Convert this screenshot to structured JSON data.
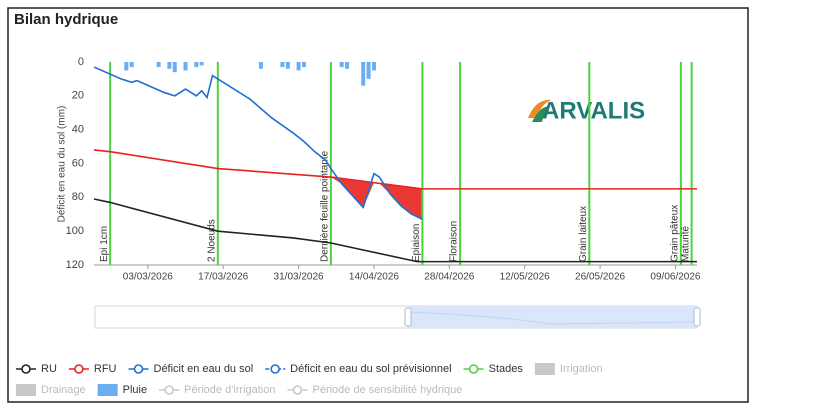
{
  "chart_data": {
    "type": "line",
    "title": "Bilan hydrique",
    "ylabel": "Déficit en eau du sol (mm)",
    "logo": "ARVALIS",
    "ylim": [
      0,
      120
    ],
    "y_inverted": true,
    "yticks": [
      0,
      20,
      40,
      60,
      80,
      100,
      120
    ],
    "xlim": [
      "2026-02-21",
      "2026-06-13"
    ],
    "xticks": [
      {
        "value": "2026-03-03",
        "label": "03/03/2026"
      },
      {
        "value": "2026-03-17",
        "label": "17/03/2026"
      },
      {
        "value": "2026-03-31",
        "label": "31/03/2026"
      },
      {
        "value": "2026-04-14",
        "label": "14/04/2026"
      },
      {
        "value": "2026-04-28",
        "label": "28/04/2026"
      },
      {
        "value": "2026-05-12",
        "label": "12/05/2026"
      },
      {
        "value": "2026-05-26",
        "label": "26/05/2026"
      },
      {
        "value": "2026-06-09",
        "label": "09/06/2026"
      }
    ],
    "series": [
      {
        "name": "RU",
        "kind": "line",
        "color": "#222222",
        "x": [
          "2026-02-21",
          "2026-02-24",
          "2026-03-16",
          "2026-03-30",
          "2026-04-06",
          "2026-04-22",
          "2026-06-13"
        ],
        "values": [
          81,
          83,
          100,
          104,
          107,
          118,
          118
        ]
      },
      {
        "name": "RFU",
        "kind": "line",
        "color": "#e8231f",
        "x": [
          "2026-02-21",
          "2026-02-24",
          "2026-03-16",
          "2026-04-06",
          "2026-04-23",
          "2026-06-13"
        ],
        "values": [
          52,
          53,
          63,
          68,
          75,
          75
        ]
      },
      {
        "name": "Déficit en eau du sol",
        "kind": "line",
        "color": "#1f6fd1",
        "x": [
          "2026-02-21",
          "2026-02-26",
          "2026-02-28",
          "2026-03-01",
          "2026-03-06",
          "2026-03-08",
          "2026-03-10",
          "2026-03-12",
          "2026-03-13",
          "2026-03-14",
          "2026-03-15",
          "2026-03-16",
          "2026-03-18",
          "2026-03-22",
          "2026-03-26",
          "2026-03-30",
          "2026-04-01",
          "2026-04-03",
          "2026-04-05",
          "2026-04-06"
        ],
        "values": [
          3,
          10,
          12,
          11,
          18,
          20,
          16,
          20,
          17,
          21,
          8,
          10,
          14,
          22,
          33,
          42,
          47,
          53,
          58,
          63
        ]
      },
      {
        "name": "Déficit en eau du sol prévisionnel",
        "kind": "line",
        "color": "#1f6fd1",
        "dashed": true,
        "area_color": "#e8231f",
        "x": [
          "2026-04-06",
          "2026-04-08",
          "2026-04-12",
          "2026-04-14",
          "2026-04-15",
          "2026-04-17",
          "2026-04-19",
          "2026-04-21",
          "2026-04-23"
        ],
        "values": [
          63,
          72,
          86,
          66,
          68,
          78,
          85,
          90,
          93
        ]
      },
      {
        "name": "Stades",
        "kind": "stade",
        "color": "#4cd13f",
        "x": [
          "2026-02-24",
          "2026-03-16",
          "2026-04-06",
          "2026-04-23",
          "2026-04-30",
          "2026-05-24",
          "2026-06-10",
          "2026-06-12"
        ],
        "labels": [
          "Epi 1cm",
          "2 Noeuds",
          "Dernière feuille pointante",
          "Epiaison",
          "Floraison",
          "Grain laiteux",
          "Grain pâteux",
          "Maturité"
        ]
      },
      {
        "name": "Irrigation",
        "kind": "bar",
        "color": "#cccccc",
        "hidden": true,
        "x": [],
        "values": []
      },
      {
        "name": "Drainage",
        "kind": "bar",
        "color": "#cccccc",
        "hidden": true,
        "x": [],
        "values": []
      },
      {
        "name": "Pluie",
        "kind": "bar",
        "color": "#6aaef0",
        "x": [
          "2026-02-27",
          "2026-02-28",
          "2026-03-05",
          "2026-03-07",
          "2026-03-08",
          "2026-03-10",
          "2026-03-12",
          "2026-03-13",
          "2026-03-24",
          "2026-03-28",
          "2026-03-29",
          "2026-03-31",
          "2026-04-01",
          "2026-04-08",
          "2026-04-09",
          "2026-04-12",
          "2026-04-13",
          "2026-04-14"
        ],
        "values": [
          5,
          3,
          3,
          4,
          6,
          5,
          3,
          2,
          4,
          3,
          4,
          5,
          3,
          3,
          4,
          14,
          10,
          5
        ]
      },
      {
        "name": "Période d'irrigation",
        "kind": "line",
        "color": "#cccccc",
        "hidden": true,
        "x": [],
        "values": []
      },
      {
        "name": "Période de sensibilité hydrique",
        "kind": "line",
        "color": "#cccccc",
        "hidden": true,
        "x": [],
        "values": []
      }
    ]
  }
}
